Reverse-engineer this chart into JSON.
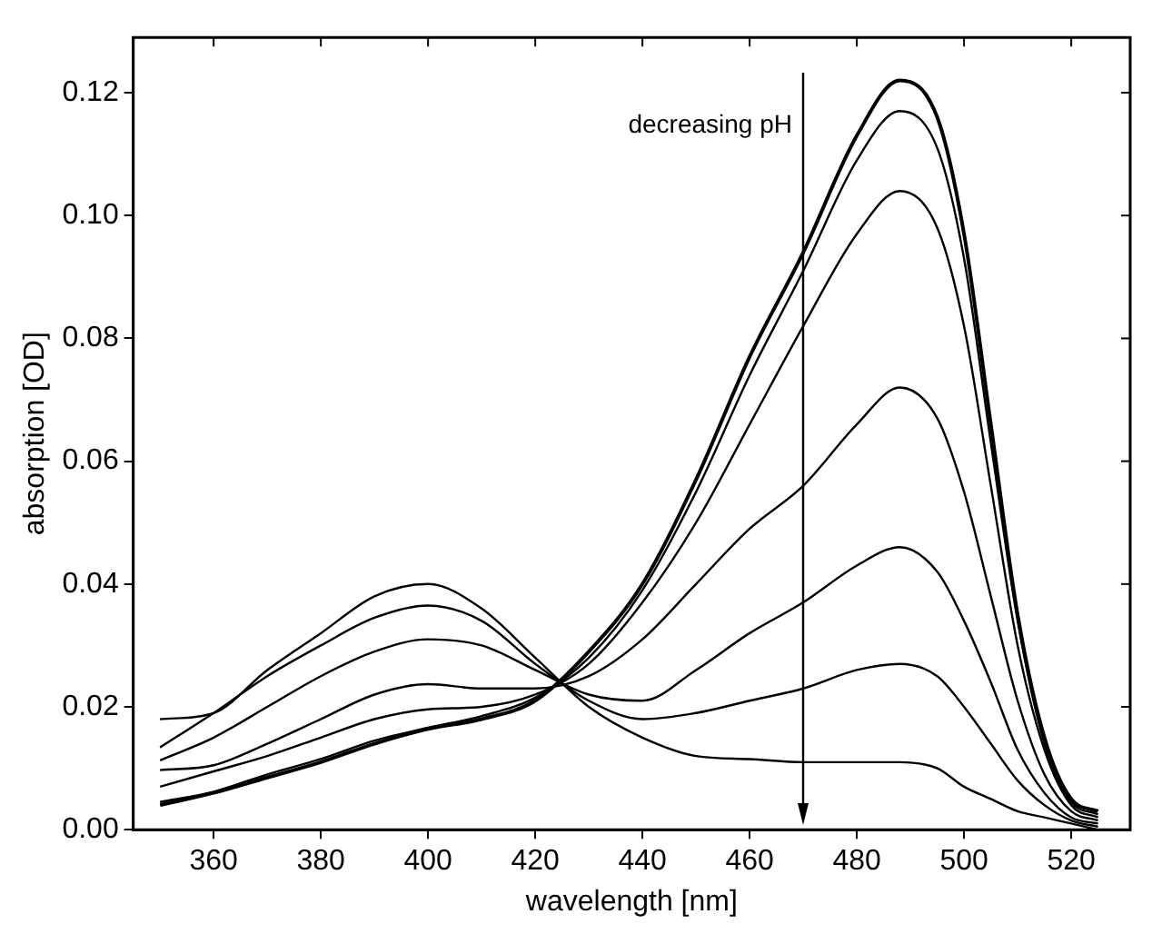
{
  "chart_data": {
    "type": "line",
    "xlabel": "wavelength [nm]",
    "ylabel": "absorption [OD]",
    "x": [
      350,
      360,
      370,
      380,
      390,
      400,
      410,
      420,
      430,
      440,
      450,
      460,
      470,
      480,
      488,
      495,
      500,
      505,
      510,
      515,
      520,
      525
    ],
    "xlim": [
      345,
      531
    ],
    "xticks": [
      360,
      380,
      400,
      420,
      440,
      460,
      480,
      500,
      520
    ],
    "ylim": [
      0,
      0.129
    ],
    "yticks": [
      {
        "value": 0,
        "label": "0.00"
      },
      0.02,
      0.04,
      0.06,
      0.08,
      {
        "value": 0.1,
        "label": "0.10"
      },
      0.12
    ],
    "grid": false,
    "legend": false,
    "marker": "none",
    "line_style": "solid",
    "annotations": [
      "decreasing pH"
    ],
    "series": [
      {
        "color": "#000000",
        "values": [
          0.004,
          0.006,
          0.0085,
          0.011,
          0.014,
          0.0164,
          0.018,
          0.021,
          0.029,
          0.04,
          0.057,
          0.077,
          0.094,
          0.113,
          0.122,
          0.116,
          0.097,
          0.066,
          0.035,
          0.015,
          0.005,
          0.003
        ]
      },
      {
        "color": "#000000",
        "values": [
          0.0045,
          0.0062,
          0.009,
          0.0115,
          0.0145,
          0.0166,
          0.0185,
          0.0215,
          0.028,
          0.039,
          0.055,
          0.074,
          0.091,
          0.109,
          0.117,
          0.111,
          0.093,
          0.063,
          0.034,
          0.014,
          0.0045,
          0.0025
        ]
      },
      {
        "color": "#000000",
        "values": [
          0.007,
          0.0095,
          0.012,
          0.015,
          0.018,
          0.0196,
          0.02,
          0.022,
          0.027,
          0.037,
          0.05,
          0.066,
          0.082,
          0.097,
          0.104,
          0.098,
          0.082,
          0.056,
          0.03,
          0.013,
          0.004,
          0.002
        ]
      },
      {
        "color": "#000000",
        "values": [
          0.0097,
          0.0105,
          0.014,
          0.018,
          0.022,
          0.0237,
          0.023,
          0.023,
          0.025,
          0.031,
          0.04,
          0.049,
          0.056,
          0.066,
          0.072,
          0.067,
          0.055,
          0.038,
          0.021,
          0.009,
          0.003,
          0.0015
        ]
      },
      {
        "color": "#000000",
        "values": [
          0.0113,
          0.015,
          0.02,
          0.025,
          0.029,
          0.031,
          0.03,
          0.026,
          0.022,
          0.021,
          0.026,
          0.032,
          0.037,
          0.043,
          0.046,
          0.042,
          0.034,
          0.024,
          0.013,
          0.006,
          0.002,
          0.001
        ]
      },
      {
        "color": "#000000",
        "values": [
          0.0134,
          0.019,
          0.025,
          0.03,
          0.0345,
          0.0365,
          0.034,
          0.027,
          0.021,
          0.018,
          0.019,
          0.021,
          0.023,
          0.026,
          0.027,
          0.025,
          0.02,
          0.014,
          0.008,
          0.004,
          0.0015,
          0.0005
        ]
      },
      {
        "color": "#000000",
        "values": [
          0.018,
          0.019,
          0.026,
          0.032,
          0.038,
          0.04,
          0.036,
          0.028,
          0.02,
          0.015,
          0.012,
          0.0115,
          0.011,
          0.011,
          0.011,
          0.01,
          0.007,
          0.005,
          0.003,
          0.002,
          0.001,
          0
        ]
      }
    ]
  }
}
